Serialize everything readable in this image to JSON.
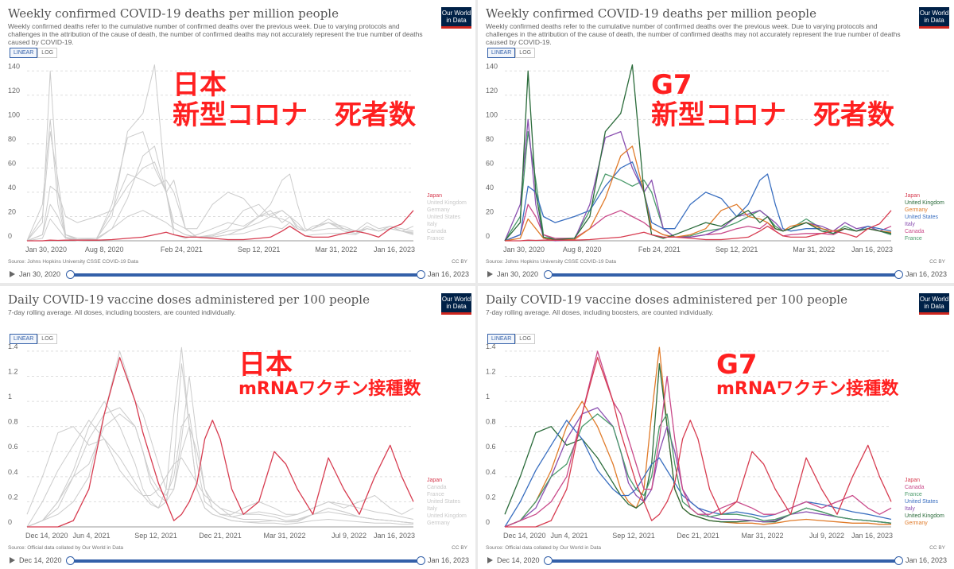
{
  "panels": [
    {
      "title": "Weekly confirmed COVID-19 deaths per million people",
      "subtitle": "Weekly confirmed deaths refer to the cumulative number of confirmed deaths over the previous week. Due to varying protocols and challenges in the attribution of the cause of death, the number of confirmed deaths may not accurately represent the true number of deaths caused by COVID-19.",
      "logo": "Our World in Data",
      "scale_buttons": [
        "LINEAR",
        "LOG"
      ],
      "source": "Source: Johns Hopkins University CSSE COVID-19 Data",
      "license": "CC BY",
      "timeline": {
        "start": "Jan 30, 2020",
        "end": "Jan 16, 2023"
      },
      "overlay": {
        "line1": "日本",
        "line2": "新型コロナ　死者数"
      }
    },
    {
      "title": "Weekly confirmed COVID-19 deaths per million people",
      "subtitle": "Weekly confirmed deaths refer to the cumulative number of confirmed deaths over the previous week. Due to varying protocols and challenges in the attribution of the cause of death, the number of confirmed deaths may not accurately represent the true number of deaths caused by COVID-19.",
      "logo": "Our World in Data",
      "scale_buttons": [
        "LINEAR",
        "LOG"
      ],
      "source": "Source: Johns Hopkins University CSSE COVID-19 Data",
      "license": "CC BY",
      "timeline": {
        "start": "Jan 30, 2020",
        "end": "Jan 16, 2023"
      },
      "overlay": {
        "line1": "G7",
        "line2": "新型コロナ　死者数"
      }
    },
    {
      "title": "Daily COVID-19 vaccine doses administered per 100 people",
      "subtitle": "7-day rolling average. All doses, including boosters, are counted individually.",
      "logo": "Our World in Data",
      "scale_buttons": [
        "LINEAR",
        "LOG"
      ],
      "source": "Source: Official data collated by Our World in Data",
      "license": "CC BY",
      "timeline": {
        "start": "Dec 14, 2020",
        "end": "Jan 16, 2023"
      },
      "overlay": {
        "line1": "日本",
        "line2": "mRNAワクチン接種数"
      }
    },
    {
      "title": "Daily COVID-19 vaccine doses administered per 100 people",
      "subtitle": "7-day rolling average. All doses, including boosters, are counted individually.",
      "logo": "Our World in Data",
      "scale_buttons": [
        "LINEAR",
        "LOG"
      ],
      "source": "Source: Official data collated by Our World in Data",
      "license": "CC BY",
      "timeline": {
        "start": "Dec 14, 2020",
        "end": "Jan 16, 2023"
      },
      "overlay": {
        "line1": "G7",
        "line2": "mRNAワクチン接種数"
      }
    }
  ],
  "colors": {
    "Japan": "#d73c50",
    "United Kingdom": "#2a6b3a",
    "Germany": "#e07b2a",
    "United States": "#3a6fc0",
    "Italy": "#8a4fb0",
    "Canada": "#c94a8a",
    "France": "#4a9a6a",
    "muted": "#cccccc"
  },
  "chart_data": [
    {
      "type": "line",
      "panel": 0,
      "highlight": "Japan",
      "x_ticks": [
        "Jan 30, 2020",
        "Aug 8, 2020",
        "Feb 24, 2021",
        "Sep 12, 2021",
        "Mar 31, 2022",
        "Jan 16, 2023"
      ],
      "y_ticks": [
        0,
        20,
        40,
        60,
        80,
        100,
        120,
        140
      ],
      "ylim": [
        0,
        150
      ],
      "legend": [
        "Japan",
        "United Kingdom",
        "Germany",
        "United States",
        "Italy",
        "Canada",
        "France"
      ],
      "series_ref": "deaths"
    },
    {
      "type": "line",
      "panel": 1,
      "highlight": "all",
      "x_ticks": [
        "Jan 30, 2020",
        "Aug 8, 2020",
        "Feb 24, 2021",
        "Sep 12, 2021",
        "Mar 31, 2022",
        "Jan 16, 2023"
      ],
      "y_ticks": [
        0,
        20,
        40,
        60,
        80,
        100,
        120,
        140
      ],
      "ylim": [
        0,
        150
      ],
      "legend": [
        "Japan",
        "United Kingdom",
        "Germany",
        "United States",
        "Italy",
        "Canada",
        "France"
      ],
      "series_ref": "deaths"
    },
    {
      "type": "line",
      "panel": 2,
      "highlight": "Japan",
      "x_ticks": [
        "Dec 14, 2020",
        "Jun 4, 2021",
        "Sep 12, 2021",
        "Dec 21, 2021",
        "Mar 31, 2022",
        "Jul 9, 2022",
        "Jan 16, 2023"
      ],
      "y_ticks": [
        0,
        0.2,
        0.4,
        0.6,
        0.8,
        1,
        1.2,
        1.4
      ],
      "ylim": [
        0,
        1.45
      ],
      "legend": [
        "Japan",
        "Canada",
        "France",
        "United States",
        "Italy",
        "United Kingdom",
        "Germany"
      ],
      "series_ref": "vaccines"
    },
    {
      "type": "line",
      "panel": 3,
      "highlight": "all",
      "x_ticks": [
        "Dec 14, 2020",
        "Jun 4, 2021",
        "Sep 12, 2021",
        "Dec 21, 2021",
        "Mar 31, 2022",
        "Jul 9, 2022",
        "Jan 16, 2023"
      ],
      "y_ticks": [
        0,
        0.2,
        0.4,
        0.6,
        0.8,
        1,
        1.2,
        1.4
      ],
      "ylim": [
        0,
        1.45
      ],
      "legend": [
        "Japan",
        "Canada",
        "France",
        "United States",
        "Italy",
        "United Kingdom",
        "Germany"
      ],
      "series_ref": "vaccines"
    }
  ],
  "series": {
    "deaths": {
      "x_range": [
        "Jan 30, 2020",
        "Jan 16, 2023"
      ],
      "t": [
        0,
        0.04,
        0.06,
        0.08,
        0.1,
        0.13,
        0.18,
        0.22,
        0.26,
        0.3,
        0.33,
        0.36,
        0.38,
        0.41,
        0.44,
        0.48,
        0.52,
        0.56,
        0.6,
        0.63,
        0.66,
        0.68,
        0.7,
        0.72,
        0.74,
        0.78,
        0.82,
        0.85,
        0.88,
        0.91,
        0.94,
        0.97,
        1
      ],
      "values": {
        "Japan": [
          0,
          0,
          0.5,
          0.3,
          0.5,
          0.5,
          0.5,
          1,
          2,
          3,
          5,
          7,
          5,
          3,
          3,
          2,
          1,
          1,
          2,
          3,
          8,
          12,
          8,
          4,
          3,
          3,
          6,
          8,
          6,
          3,
          10,
          14,
          25
        ],
        "United Kingdom": [
          0,
          15,
          140,
          40,
          3,
          1,
          2,
          20,
          90,
          105,
          145,
          40,
          5,
          2,
          5,
          10,
          15,
          12,
          20,
          25,
          15,
          20,
          10,
          8,
          10,
          15,
          8,
          6,
          10,
          8,
          10,
          8,
          6
        ],
        "Germany": [
          0,
          2,
          18,
          10,
          2,
          1,
          1,
          10,
          35,
          70,
          78,
          40,
          10,
          5,
          3,
          5,
          10,
          25,
          30,
          20,
          18,
          15,
          10,
          8,
          12,
          15,
          10,
          8,
          10,
          8,
          10,
          8,
          7
        ],
        "United States": [
          0,
          5,
          45,
          40,
          20,
          15,
          20,
          25,
          45,
          60,
          65,
          40,
          15,
          10,
          10,
          30,
          40,
          35,
          20,
          30,
          50,
          55,
          30,
          10,
          8,
          10,
          10,
          8,
          10,
          8,
          12,
          10,
          8
        ],
        "Italy": [
          0,
          30,
          100,
          30,
          2,
          0,
          1,
          30,
          85,
          90,
          60,
          40,
          50,
          10,
          3,
          3,
          5,
          10,
          20,
          22,
          25,
          20,
          15,
          8,
          10,
          15,
          12,
          8,
          15,
          10,
          12,
          8,
          6
        ],
        "Canada": [
          0,
          5,
          30,
          20,
          5,
          2,
          2,
          10,
          20,
          25,
          20,
          15,
          10,
          5,
          3,
          3,
          5,
          6,
          10,
          12,
          10,
          15,
          8,
          4,
          5,
          6,
          6,
          5,
          10,
          8,
          10,
          8,
          12
        ],
        "France": [
          0,
          20,
          90,
          50,
          5,
          1,
          2,
          25,
          55,
          50,
          45,
          50,
          40,
          10,
          3,
          4,
          8,
          10,
          15,
          20,
          25,
          20,
          12,
          8,
          10,
          18,
          10,
          6,
          12,
          8,
          12,
          8,
          5
        ]
      }
    },
    "vaccines": {
      "x_range": [
        "Dec 14, 2020",
        "Jan 16, 2023"
      ],
      "t": [
        0,
        0.04,
        0.08,
        0.12,
        0.16,
        0.2,
        0.24,
        0.28,
        0.3,
        0.32,
        0.34,
        0.36,
        0.38,
        0.4,
        0.42,
        0.44,
        0.46,
        0.48,
        0.5,
        0.53,
        0.56,
        0.6,
        0.64,
        0.67,
        0.7,
        0.74,
        0.78,
        0.82,
        0.86,
        0.9,
        0.94,
        0.97,
        1
      ],
      "values": {
        "Japan": [
          0,
          0,
          0,
          0.05,
          0.3,
          0.9,
          1.35,
          1.0,
          0.75,
          0.55,
          0.35,
          0.2,
          0.05,
          0.1,
          0.2,
          0.35,
          0.7,
          0.85,
          0.7,
          0.3,
          0.1,
          0.2,
          0.6,
          0.5,
          0.3,
          0.1,
          0.55,
          0.3,
          0.1,
          0.4,
          0.65,
          0.4,
          0.2
        ],
        "Canada": [
          0,
          0.05,
          0.1,
          0.2,
          0.4,
          0.9,
          1.4,
          1.0,
          0.9,
          0.7,
          0.5,
          0.3,
          0.3,
          0.7,
          1.2,
          0.7,
          0.3,
          0.15,
          0.1,
          0.1,
          0.15,
          0.2,
          0.15,
          0.1,
          0.1,
          0.15,
          0.2,
          0.15,
          0.2,
          0.25,
          0.15,
          0.1,
          0.15
        ],
        "France": [
          0,
          0.05,
          0.2,
          0.4,
          0.5,
          0.8,
          0.9,
          0.8,
          0.6,
          0.4,
          0.3,
          0.25,
          0.4,
          0.8,
          0.9,
          0.5,
          0.2,
          0.15,
          0.1,
          0.08,
          0.1,
          0.1,
          0.08,
          0.05,
          0.06,
          0.1,
          0.15,
          0.12,
          0.08,
          0.06,
          0.05,
          0.04,
          0.03
        ],
        "United States": [
          0,
          0.2,
          0.45,
          0.65,
          0.85,
          0.7,
          0.45,
          0.3,
          0.25,
          0.25,
          0.3,
          0.4,
          0.5,
          0.55,
          0.45,
          0.35,
          0.25,
          0.2,
          0.15,
          0.12,
          0.1,
          0.12,
          0.1,
          0.08,
          0.1,
          0.15,
          0.2,
          0.18,
          0.15,
          0.12,
          0.1,
          0.08,
          0.06
        ],
        "Italy": [
          0,
          0.05,
          0.15,
          0.4,
          0.7,
          0.9,
          0.95,
          0.8,
          0.6,
          0.35,
          0.25,
          0.2,
          0.3,
          0.6,
          0.8,
          0.6,
          0.3,
          0.2,
          0.15,
          0.08,
          0.06,
          0.06,
          0.05,
          0.04,
          0.05,
          0.1,
          0.12,
          0.1,
          0.08,
          0.06,
          0.05,
          0.04,
          0.03
        ],
        "United Kingdom": [
          0.1,
          0.4,
          0.75,
          0.8,
          0.65,
          0.7,
          0.55,
          0.35,
          0.25,
          0.18,
          0.15,
          0.2,
          0.5,
          1.3,
          0.8,
          0.3,
          0.15,
          0.1,
          0.08,
          0.05,
          0.04,
          0.04,
          0.05,
          0.04,
          0.04,
          0.1,
          0.15,
          0.12,
          0.08,
          0.06,
          0.05,
          0.04,
          0.03
        ],
        "Germany": [
          0,
          0.05,
          0.2,
          0.45,
          0.8,
          1.0,
          0.8,
          0.5,
          0.3,
          0.2,
          0.15,
          0.3,
          0.9,
          1.43,
          0.8,
          0.3,
          0.15,
          0.1,
          0.08,
          0.05,
          0.04,
          0.03,
          0.03,
          0.02,
          0.03,
          0.05,
          0.06,
          0.05,
          0.04,
          0.03,
          0.03,
          0.02,
          0.02
        ]
      }
    }
  }
}
